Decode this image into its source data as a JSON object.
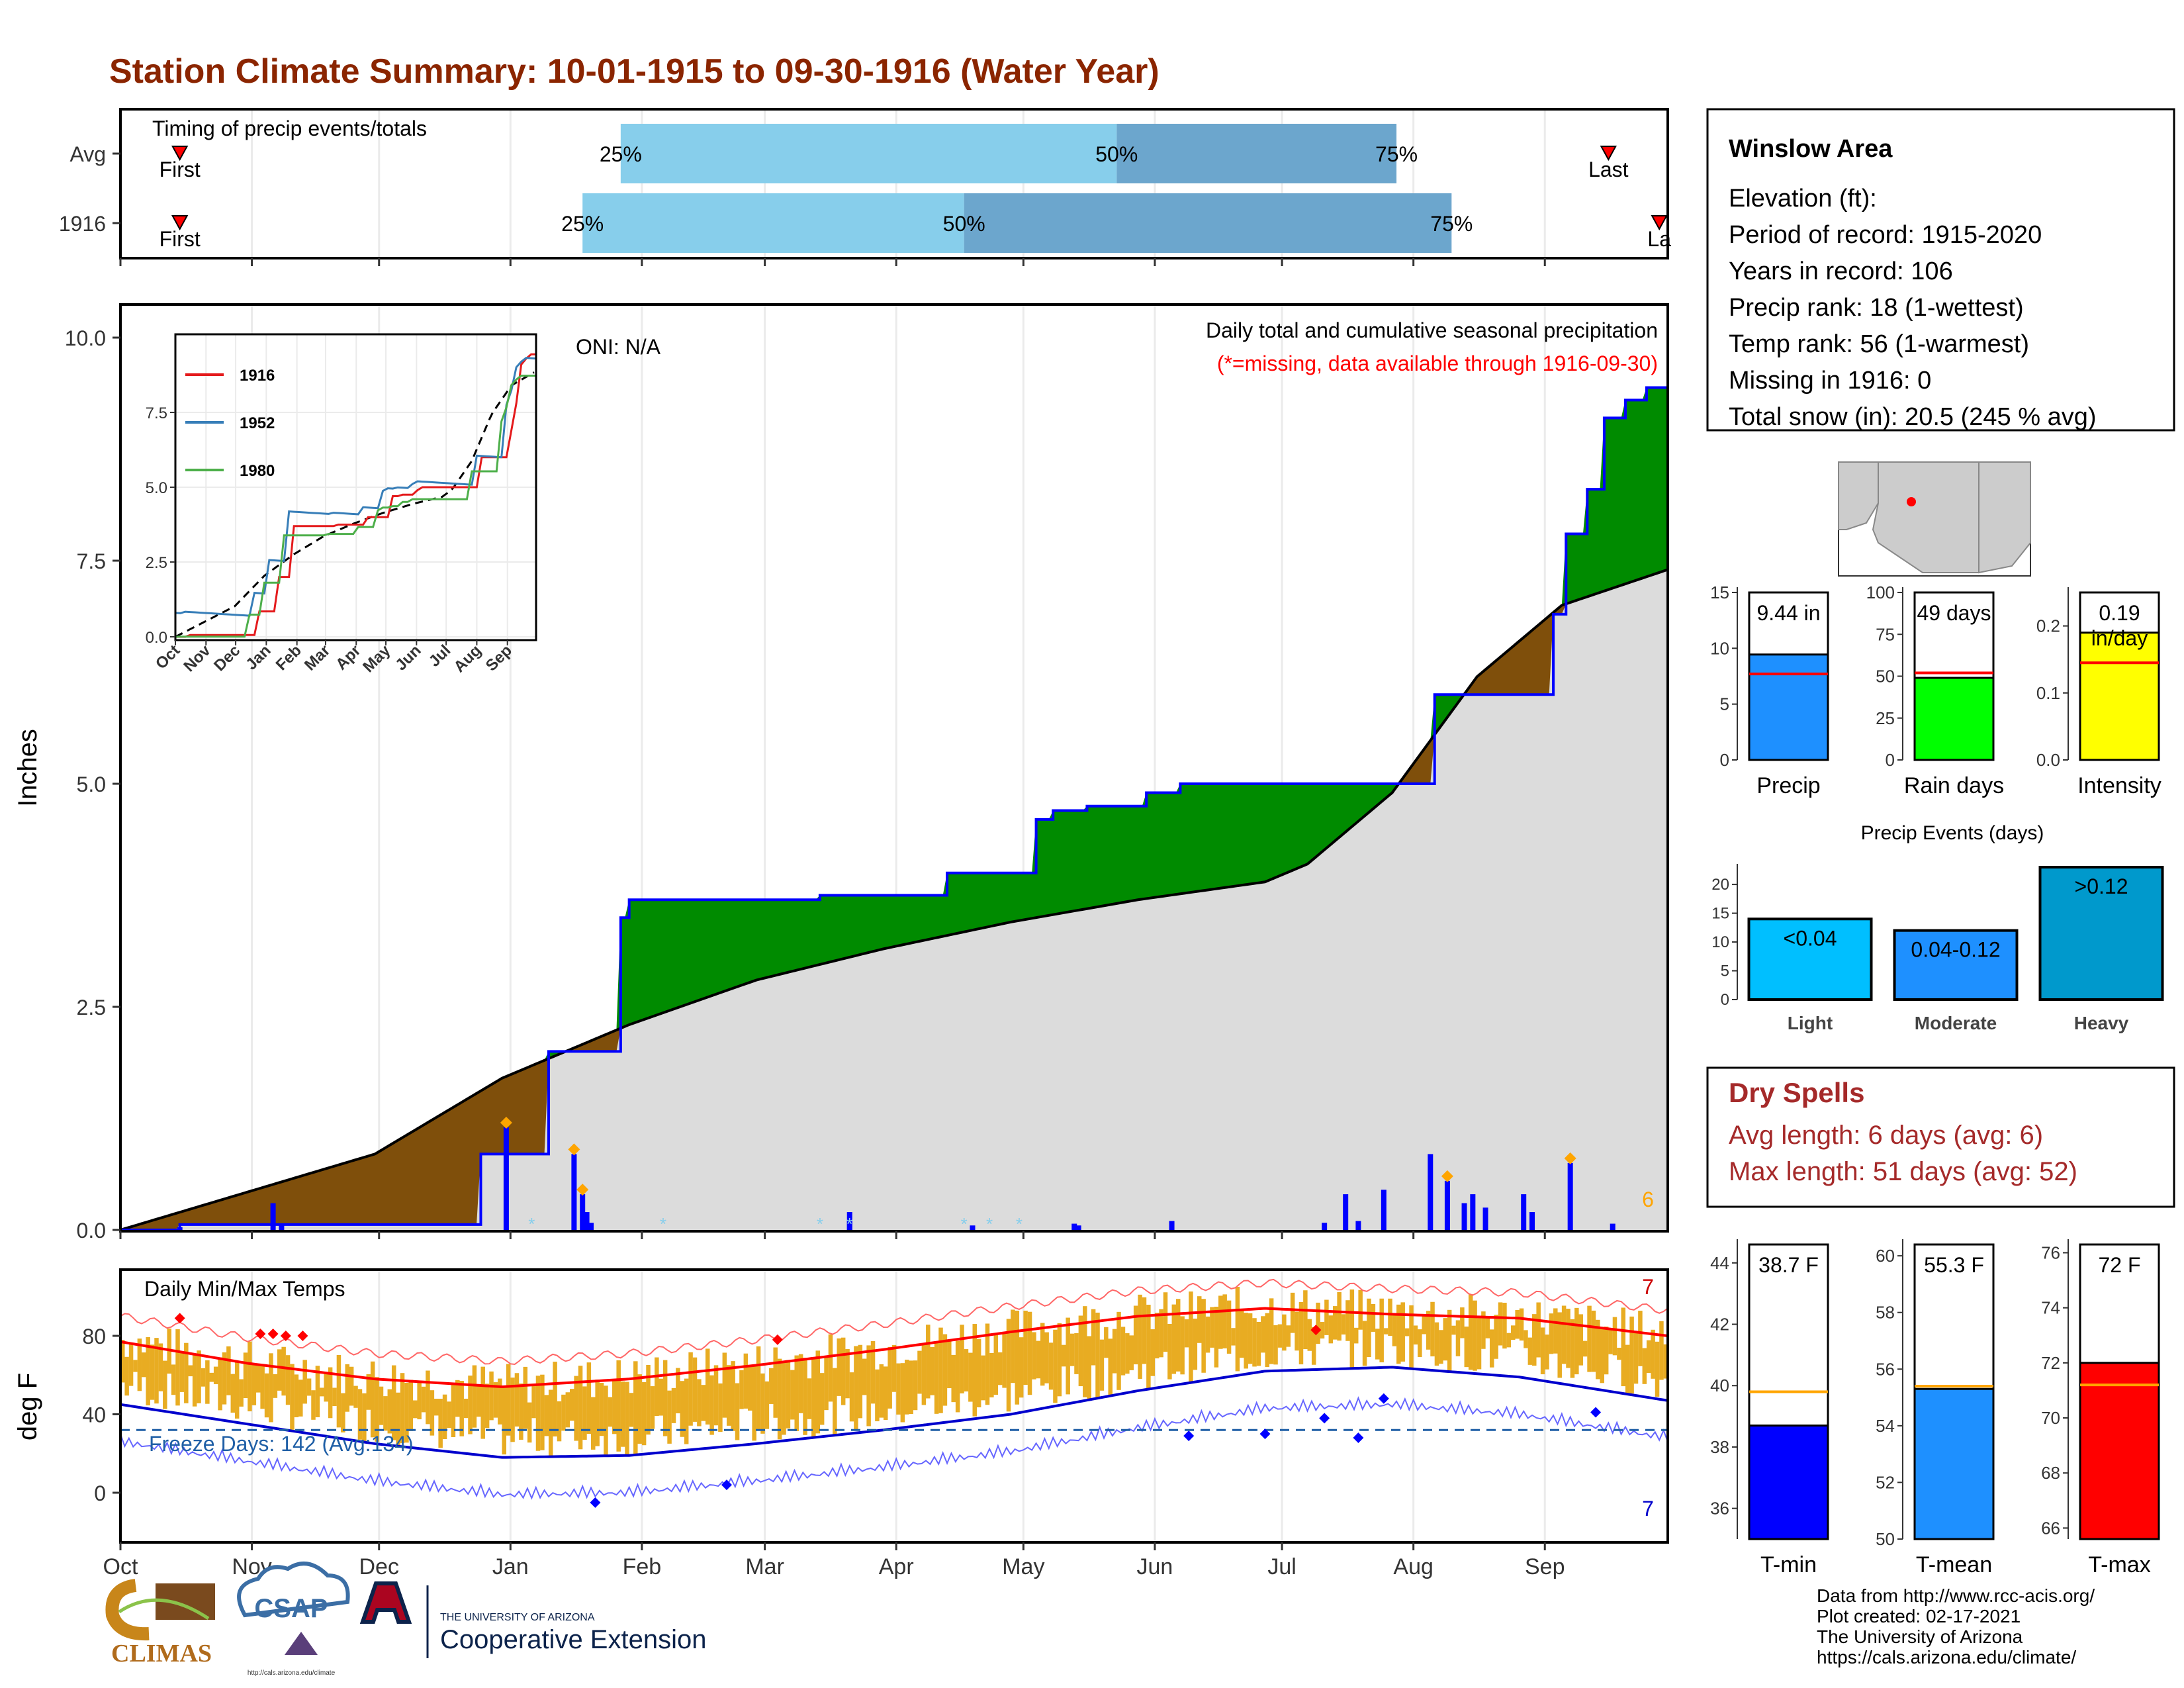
{
  "title": "Station Climate Summary: 10-01-1915 to 09-30-1916 (Water Year)",
  "months": [
    "Oct",
    "Nov",
    "Dec",
    "Jan",
    "Feb",
    "Mar",
    "Apr",
    "May",
    "Jun",
    "Jul",
    "Aug",
    "Sep"
  ],
  "timing": {
    "title": "Timing of precip events/totals",
    "rows": [
      {
        "label": "Avg",
        "first": "First",
        "last": "Last",
        "p25_label": "25%",
        "p50_label": "50%",
        "p75_label": "75%",
        "first_day": 14,
        "p25_day": 118,
        "p50_day": 235,
        "p75_day": 301,
        "last_day": 351
      },
      {
        "label": "1916",
        "first": "First",
        "last": "La",
        "p25_label": "25%",
        "p50_label": "50%",
        "p75_label": "75%",
        "first_day": 14,
        "p25_day": 109,
        "p50_day": 199,
        "p75_day": 314,
        "last_day": 363
      }
    ],
    "colors": {
      "first_half": "#87ceeb",
      "second_half": "#6ca6cd"
    }
  },
  "precip_panel": {
    "ylabel": "Inches",
    "annotation_title": "Daily total and cumulative seasonal precipitation",
    "annotation_missing": "(*=missing, data available through 1916-09-30)",
    "oni": "ONI: N/A",
    "corner_count": "6",
    "yticks": [
      "0.0",
      "2.5",
      "5.0",
      "7.5",
      "10.0"
    ],
    "inset": {
      "yticks": [
        "0.0",
        "2.5",
        "5.0",
        "7.5"
      ],
      "legend": [
        "1916",
        "1952",
        "1980"
      ],
      "legend_colors": [
        "#e41a1c",
        "#377eb8",
        "#4daf4a"
      ]
    }
  },
  "temp_panel": {
    "ylabel": "deg F",
    "title": "Daily Min/Max Temps",
    "freeze_text": "Freeze Days: 142 (Avg:134)",
    "top_count": "7",
    "bottom_count": "7",
    "yticks": [
      "0",
      "40",
      "80"
    ]
  },
  "station": {
    "name": "Winslow Area",
    "lines": [
      "Elevation (ft):",
      "Period of record: 1915-2020",
      "Years in record: 106",
      "Precip rank: 18 (1-wettest)",
      "Temp rank: 56 (1-warmest)",
      "Missing in 1916: 0",
      "Total snow (in): 20.5 (245 % avg)"
    ]
  },
  "mini_bars": [
    {
      "label": "Precip",
      "value_text": "9.44 in",
      "value": 9.44,
      "avg": 7.7,
      "max": 15,
      "ticks": [
        "0",
        "5",
        "10",
        "15"
      ],
      "color": "#1e90ff"
    },
    {
      "label": "Rain days",
      "value_text": "49 days",
      "value": 49,
      "avg": 52,
      "max": 100,
      "ticks": [
        "0",
        "25",
        "50",
        "75",
        "100"
      ],
      "color": "#00ff00"
    },
    {
      "label": "Intensity",
      "value_text": "0.19 in/day",
      "value": 0.19,
      "avg": 0.145,
      "max": 0.25,
      "ticks": [
        "0.0",
        "0.1",
        "0.2"
      ],
      "color": "#ffff00"
    }
  ],
  "events": {
    "title": "Precip Events (days)",
    "categories": [
      "Light",
      "Moderate",
      "Heavy"
    ],
    "labels": [
      "<0.04",
      "0.04-0.12",
      ">0.12"
    ],
    "values": [
      14,
      12,
      23
    ],
    "max": 23,
    "yticks": [
      "0",
      "5",
      "10",
      "15",
      "20"
    ],
    "colors": [
      "#00bfff",
      "#1e90ff",
      "#0099cc"
    ]
  },
  "dry_spells": {
    "title": "Dry Spells",
    "avg_line": "Avg length: 6 days (avg: 6)",
    "max_line": "Max length: 51 days (avg: 52)"
  },
  "temp_bars": [
    {
      "label": "T-min",
      "value_text": "38.7 F",
      "value": 38.7,
      "avg": 39.8,
      "min": 35,
      "max": 44.6,
      "ticks": [
        "36",
        "38",
        "40",
        "42",
        "44"
      ],
      "color": "#0000ff"
    },
    {
      "label": "T-mean",
      "value_text": "55.3 F",
      "value": 55.3,
      "avg": 55.4,
      "min": 50,
      "max": 60.4,
      "ticks": [
        "50",
        "52",
        "54",
        "56",
        "58",
        "60"
      ],
      "color": "#1e90ff"
    },
    {
      "label": "T-max",
      "value_text": "72 F",
      "value": 72,
      "avg": 71.2,
      "min": 65.6,
      "max": 76.3,
      "ticks": [
        "66",
        "68",
        "70",
        "72",
        "74",
        "76"
      ],
      "color": "#ff0000"
    }
  ],
  "footer": {
    "lines": [
      "Data from http://www.rcc-acis.org/",
      "Plot created: 02-17-2021",
      "The University of Arizona",
      "https://cals.arizona.edu/climate/"
    ],
    "climas": "CLIMAS",
    "csap": "CSAP",
    "csap_url": "http://cals.arizona.edu/climate",
    "ua_small": "THE UNIVERSITY OF ARIZONA",
    "ua_big": "Cooperative Extension"
  },
  "chart_data": {
    "type": "area",
    "title": "Station Climate Summary: 10-01-1915 to 09-30-1916 (Water Year)",
    "ylabel": "Inches",
    "ylim": [
      0,
      10
    ],
    "cumulative_1916": {
      "day": [
        0,
        14,
        34,
        85,
        101,
        118,
        120,
        165,
        195,
        216,
        220,
        228,
        239,
        242,
        250,
        290,
        310,
        338,
        341,
        346,
        350,
        355,
        360,
        365
      ],
      "inches": [
        0,
        0.06,
        0.06,
        0.85,
        2.0,
        3.5,
        3.7,
        3.75,
        4.0,
        4.6,
        4.7,
        4.75,
        4.75,
        4.9,
        5.0,
        5.0,
        6.0,
        6.9,
        7.8,
        8.3,
        9.1,
        9.3,
        9.44,
        9.44
      ],
      "color": "#0000ff"
    },
    "average_cumulative": {
      "day": [
        0,
        60,
        90,
        120,
        150,
        180,
        210,
        240,
        270,
        280,
        300,
        320,
        340,
        365
      ],
      "inches": [
        0,
        0.85,
        1.7,
        2.3,
        2.8,
        3.15,
        3.45,
        3.7,
        3.9,
        4.1,
        4.9,
        6.2,
        7.0,
        7.4
      ]
    },
    "daily_precip": {
      "day": [
        14,
        36,
        38,
        91,
        107,
        109,
        110,
        111,
        172,
        172,
        201,
        225,
        226,
        248,
        284,
        289,
        292,
        298,
        309,
        313,
        317,
        319,
        322,
        331,
        333,
        342,
        352
      ],
      "inches": [
        0.03,
        0.3,
        0.05,
        1.15,
        0.85,
        0.4,
        0.2,
        0.08,
        0.2,
        0.1,
        0.05,
        0.07,
        0.05,
        0.1,
        0.08,
        0.4,
        0.1,
        0.45,
        0.85,
        0.55,
        0.3,
        0.4,
        0.25,
        0.4,
        0.2,
        0.75,
        0.07
      ]
    },
    "temperature": {
      "ylabel": "deg F",
      "avg_max": {
        "day": [
          0,
          30,
          60,
          90,
          120,
          150,
          180,
          210,
          240,
          270,
          300,
          330,
          365
        ],
        "degF": [
          77,
          66,
          58,
          54,
          58,
          65,
          73,
          82,
          90,
          94,
          91,
          89,
          80
        ]
      },
      "avg_min": {
        "day": [
          0,
          30,
          60,
          90,
          120,
          150,
          180,
          210,
          240,
          270,
          300,
          330,
          365
        ],
        "degF": [
          45,
          35,
          25,
          18,
          19,
          25,
          32,
          40,
          52,
          62,
          64,
          59,
          47
        ]
      },
      "freeze_line": 32
    }
  }
}
